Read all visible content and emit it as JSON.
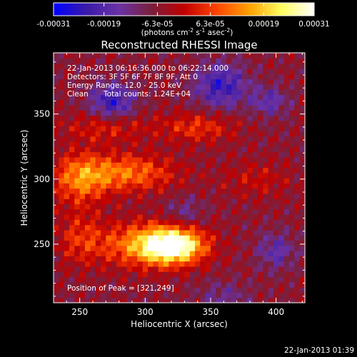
{
  "colorbar": {
    "tick_labels": [
      "-0.00031",
      "-0.00019",
      "-6.3e-05",
      "6.3e-05",
      "0.00019",
      "0.00031"
    ],
    "tick_values": [
      -0.00031,
      -0.00019,
      -6.3e-05,
      6.3e-05,
      0.00019,
      0.00031
    ],
    "range": [
      -0.00031,
      0.00031
    ],
    "units_prefix": "(photons cm",
    "units_exp1": "-2",
    "units_mid": " s",
    "units_exp2": "-1",
    "units_mid2": " asec",
    "units_exp3": "-2",
    "units_suffix": ")",
    "colors": [
      "#0000ff",
      "#3a1aa8",
      "#6a32a6",
      "#7a1f3c",
      "#c00000",
      "#ff4400",
      "#ffa000",
      "#ffff60",
      "#ffffff"
    ]
  },
  "chart_data": {
    "type": "heatmap",
    "title": "Reconstructed RHESSI Image",
    "xlabel": "Heliocentric X (arcsec)",
    "ylabel": "Heliocentric Y (arcsec)",
    "xlim": [
      230,
      422
    ],
    "ylim": [
      205,
      397
    ],
    "x_ticks": [
      250,
      300,
      350,
      400
    ],
    "x_tick_labels": [
      "250",
      "300",
      "350",
      "400"
    ],
    "y_ticks": [
      250,
      300,
      350
    ],
    "y_tick_labels": [
      "250",
      "300",
      "350"
    ],
    "peak": [
      321,
      249
    ],
    "annotations": {
      "line1": "22-Jan-2013 06:16:36.000 to 06:22:14.000",
      "line2": "Detectors: 3F 5F 6F 7F 8F 9F, Att 0",
      "line3": "Energy Range: 12.0 - 25.0 keV",
      "line4a": "Clean",
      "line4b": "Total counts: 1.24E+04",
      "peak_text": "Position of Peak = [321,249]"
    }
  },
  "footer": {
    "timestamp": "22-Jan-2013 01:39"
  }
}
